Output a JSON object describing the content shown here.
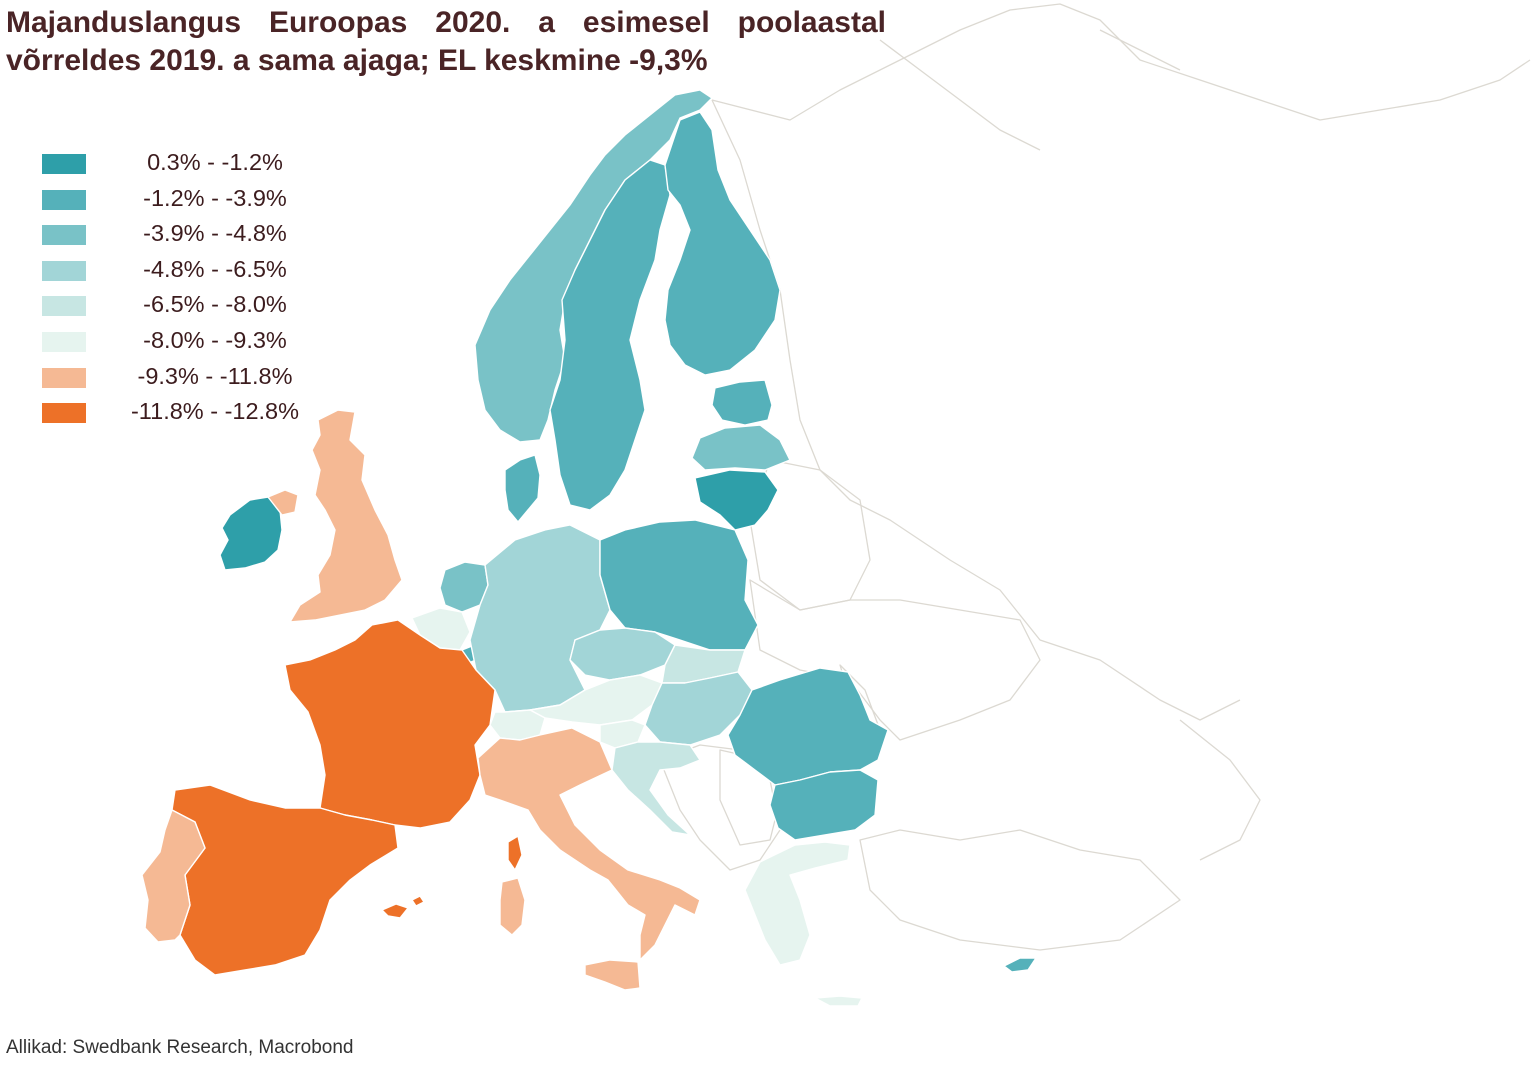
{
  "title": {
    "line1": "Majanduslangus Euroopas 2020. a esimesel poolaastal",
    "line2": "võrreldes 2019. a sama ajaga; EL keskmine -9,3%"
  },
  "source": "Allikad: Swedbank Research, Macrobond",
  "legend": [
    {
      "label": "0.3% - -1.2%",
      "color": "#2e9fa9"
    },
    {
      "label": "-1.2% - -3.9%",
      "color": "#55b1ba"
    },
    {
      "label": "-3.9% - -4.8%",
      "color": "#79c2c7"
    },
    {
      "label": "-4.8% - -6.5%",
      "color": "#a2d5d7"
    },
    {
      "label": "-6.5% - -8.0%",
      "color": "#c7e6e3"
    },
    {
      "label": "-8.0% - -9.3%",
      "color": "#e6f4ef"
    },
    {
      "label": "-9.3% - -11.8%",
      "color": "#f5b994"
    },
    {
      "label": "-11.8% - -12.8%",
      "color": "#ed7128"
    }
  ],
  "map": {
    "countries": [
      {
        "name": "norway",
        "class": 2
      },
      {
        "name": "sweden",
        "class": 1
      },
      {
        "name": "finland",
        "class": 1
      },
      {
        "name": "estonia",
        "class": 1
      },
      {
        "name": "latvia",
        "class": 2
      },
      {
        "name": "lithuania",
        "class": 0
      },
      {
        "name": "denmark",
        "class": 1
      },
      {
        "name": "ireland",
        "class": 0
      },
      {
        "name": "northern-ireland",
        "class": 6
      },
      {
        "name": "united-kingdom",
        "class": 6
      },
      {
        "name": "netherlands",
        "class": 2
      },
      {
        "name": "belgium",
        "class": 5
      },
      {
        "name": "luxembourg",
        "class": 1
      },
      {
        "name": "germany",
        "class": 3
      },
      {
        "name": "poland",
        "class": 1
      },
      {
        "name": "czechia",
        "class": 3
      },
      {
        "name": "slovakia",
        "class": 4
      },
      {
        "name": "austria",
        "class": 5
      },
      {
        "name": "switzerland",
        "class": 5
      },
      {
        "name": "hungary",
        "class": 3
      },
      {
        "name": "slovenia",
        "class": 5
      },
      {
        "name": "croatia",
        "class": 4
      },
      {
        "name": "romania",
        "class": 1
      },
      {
        "name": "bulgaria",
        "class": 1
      },
      {
        "name": "greece",
        "class": 5
      },
      {
        "name": "cyprus",
        "class": 1
      },
      {
        "name": "france",
        "class": 7
      },
      {
        "name": "corsica",
        "class": 7
      },
      {
        "name": "spain",
        "class": 7
      },
      {
        "name": "balearic-islands",
        "class": 7
      },
      {
        "name": "portugal",
        "class": 6
      },
      {
        "name": "italy",
        "class": 6
      },
      {
        "name": "sardinia",
        "class": 6
      },
      {
        "name": "sicily",
        "class": 6
      }
    ]
  }
}
